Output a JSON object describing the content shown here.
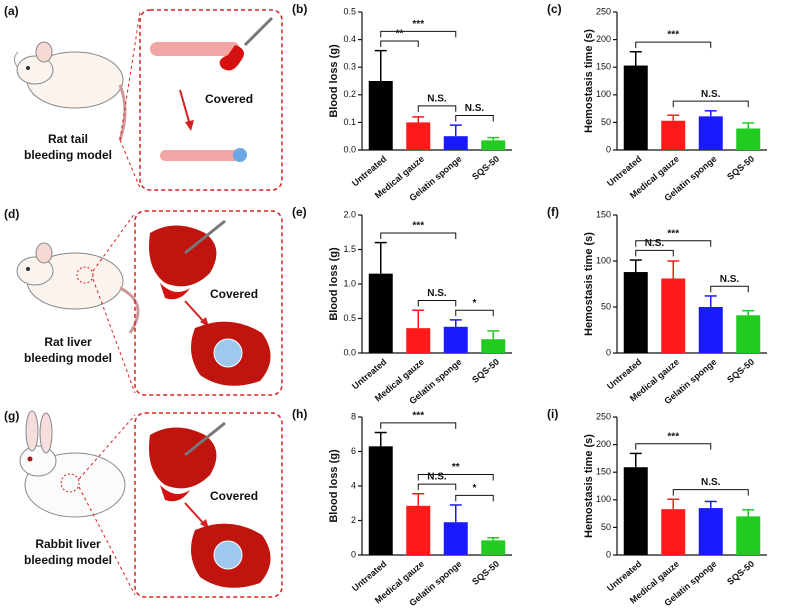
{
  "panels": [
    {
      "label": "(a)",
      "caption": [
        "Rat tail",
        "bleeding model"
      ],
      "action": "Covered"
    },
    {
      "label": "(d)",
      "caption": [
        "Rat liver",
        "bleeding model"
      ],
      "action": "Covered"
    },
    {
      "label": "(g)",
      "caption": [
        "Rabbit liver",
        "bleeding model"
      ],
      "action": "Covered"
    }
  ],
  "chart_data": [
    {
      "type": "bar",
      "label": "(b)",
      "ylabel": "Blood loss (g)",
      "categories": [
        "Untreated",
        "Medical gauze",
        "Gelatin sponge",
        "SQS-50"
      ],
      "colors": [
        "#000000",
        "#ff1a1a",
        "#1a1aff",
        "#1fcc1f"
      ],
      "values": [
        0.25,
        0.1,
        0.05,
        0.035
      ],
      "errors": [
        0.11,
        0.02,
        0.04,
        0.01
      ],
      "ylim": [
        0,
        0.5
      ],
      "yticks": [
        {
          "value": 0,
          "label": "0.0"
        },
        0.1,
        0.2,
        0.3,
        0.4,
        0.5
      ],
      "significance": [
        {
          "between": [
            "Gelatin sponge",
            "SQS-50"
          ],
          "label": "N.S."
        },
        {
          "between": [
            "Medical gauze",
            "Gelatin sponge"
          ],
          "label": "N.S."
        },
        {
          "between": [
            "Untreated",
            "Medical gauze"
          ],
          "label": "**"
        },
        {
          "between": [
            "Untreated",
            "Gelatin sponge"
          ],
          "label": "***"
        }
      ]
    },
    {
      "type": "bar",
      "label": "(c)",
      "ylabel": "Hemostasis time (s)",
      "categories": [
        "Untreated",
        "Medical gauze",
        "Gelatin sponge",
        "SQS-50"
      ],
      "colors": [
        "#000000",
        "#ff1a1a",
        "#1a1aff",
        "#1fcc1f"
      ],
      "values": [
        153,
        53,
        61,
        39
      ],
      "errors": [
        25,
        10,
        10,
        10
      ],
      "ylim": [
        0,
        250
      ],
      "yticks": [
        0,
        50,
        100,
        150,
        200,
        250
      ],
      "significance": [
        {
          "between": [
            "Medical gauze",
            "SQS-50"
          ],
          "label": "N.S."
        },
        {
          "between": [
            "Untreated",
            "Gelatin sponge"
          ],
          "label": "***"
        }
      ]
    },
    {
      "type": "bar",
      "label": "(e)",
      "ylabel": "Blood loss (g)",
      "categories": [
        "Untreated",
        "Medical gauze",
        "Gelatin sponge",
        "SQS-50"
      ],
      "colors": [
        "#000000",
        "#ff1a1a",
        "#1a1aff",
        "#1fcc1f"
      ],
      "values": [
        1.15,
        0.36,
        0.38,
        0.2
      ],
      "errors": [
        0.45,
        0.26,
        0.1,
        0.12
      ],
      "ylim": [
        0,
        2.0
      ],
      "yticks": [
        {
          "value": 0,
          "label": "0.0"
        },
        0.5,
        {
          "value": 1,
          "label": "1.0"
        },
        1.5,
        {
          "value": 2,
          "label": "2.0"
        }
      ],
      "significance": [
        {
          "between": [
            "Gelatin sponge",
            "SQS-50"
          ],
          "label": "*"
        },
        {
          "between": [
            "Medical gauze",
            "Gelatin sponge"
          ],
          "label": "N.S."
        },
        {
          "between": [
            "Untreated",
            "Gelatin sponge"
          ],
          "label": "***"
        }
      ]
    },
    {
      "type": "bar",
      "label": "(f)",
      "ylabel": "Hemostasis time (s)",
      "categories": [
        "Untreated",
        "Medical gauze",
        "Gelatin sponge",
        "SQS-50"
      ],
      "colors": [
        "#000000",
        "#ff1a1a",
        "#1a1aff",
        "#1fcc1f"
      ],
      "values": [
        88,
        81,
        50,
        41
      ],
      "errors": [
        13,
        19,
        12,
        5
      ],
      "ylim": [
        0,
        150
      ],
      "yticks": [
        0,
        50,
        100,
        150
      ],
      "significance": [
        {
          "between": [
            "Gelatin sponge",
            "SQS-50"
          ],
          "label": "N.S."
        },
        {
          "between": [
            "Untreated",
            "Medical gauze"
          ],
          "label": "N.S."
        },
        {
          "between": [
            "Untreated",
            "Gelatin sponge"
          ],
          "label": "***"
        }
      ]
    },
    {
      "type": "bar",
      "label": "(h)",
      "ylabel": "Blood loss (g)",
      "categories": [
        "Untreated",
        "Medical gauze",
        "Gelatin sponge",
        "SQS-50"
      ],
      "colors": [
        "#000000",
        "#ff1a1a",
        "#1a1aff",
        "#1fcc1f"
      ],
      "values": [
        6.3,
        2.85,
        1.9,
        0.85
      ],
      "errors": [
        0.8,
        0.7,
        1.0,
        0.15
      ],
      "ylim": [
        0,
        8
      ],
      "yticks": [
        0,
        2,
        4,
        6,
        8
      ],
      "significance": [
        {
          "between": [
            "Gelatin sponge",
            "SQS-50"
          ],
          "label": "*"
        },
        {
          "between": [
            "Medical gauze",
            "Gelatin sponge"
          ],
          "label": "N.S."
        },
        {
          "between": [
            "Medical gauze",
            "SQS-50"
          ],
          "label": "**"
        },
        {
          "between": [
            "Untreated",
            "Gelatin sponge"
          ],
          "label": "***"
        }
      ]
    },
    {
      "type": "bar",
      "label": "(i)",
      "ylabel": "Hemostasis time (s)",
      "categories": [
        "Untreated",
        "Medical gauze",
        "Gelatin sponge",
        "SQS-50"
      ],
      "colors": [
        "#000000",
        "#ff1a1a",
        "#1a1aff",
        "#1fcc1f"
      ],
      "values": [
        159,
        83,
        85,
        70
      ],
      "errors": [
        25,
        18,
        12,
        12
      ],
      "ylim": [
        0,
        250
      ],
      "yticks": [
        0,
        50,
        100,
        150,
        200,
        250
      ],
      "significance": [
        {
          "between": [
            "Medical gauze",
            "SQS-50"
          ],
          "label": "N.S."
        },
        {
          "between": [
            "Untreated",
            "Gelatin sponge"
          ],
          "label": "***"
        }
      ]
    }
  ]
}
